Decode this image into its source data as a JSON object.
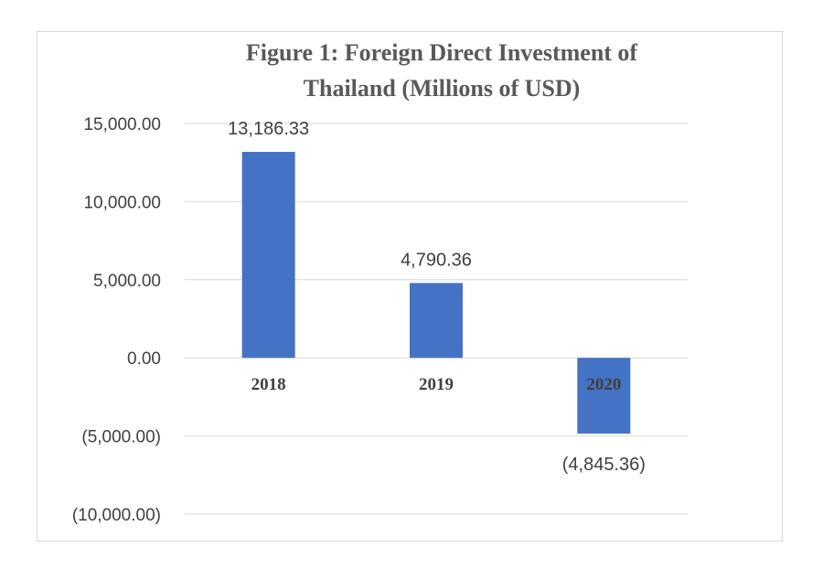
{
  "chart_data": {
    "type": "bar",
    "title_lines": [
      "Figure 1: Foreign Direct Investment of",
      "Thailand  (Millions of USD)"
    ],
    "categories": [
      "2018",
      "2019",
      "2020"
    ],
    "values": [
      13186.33,
      4790.36,
      -4845.36
    ],
    "data_labels": [
      "13,186.33",
      "4,790.36",
      "(4,845.36)"
    ],
    "ylim": [
      -10000,
      15000
    ],
    "yticks": [
      15000,
      10000,
      5000,
      0,
      -5000,
      -10000
    ],
    "ytick_labels": [
      "15,000.00",
      "10,000.00",
      "5,000.00",
      "0.00",
      "(5,000.00)",
      "(10,000.00)"
    ],
    "grid": true,
    "bar_color": "#4472c4"
  }
}
